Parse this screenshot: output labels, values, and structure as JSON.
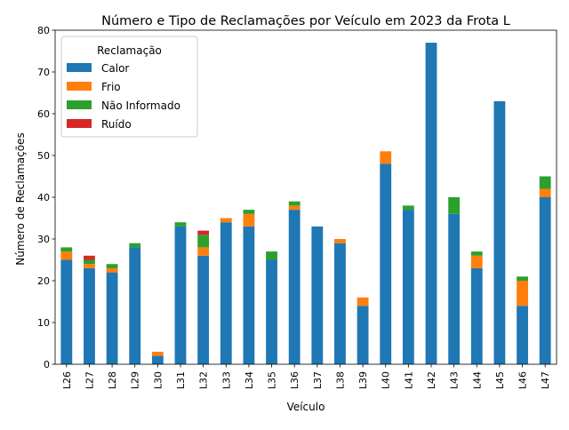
{
  "chart_data": {
    "type": "bar",
    "stacked": true,
    "title": "Número e Tipo de Reclamações por  Veículo em 2023 da Frota L",
    "xlabel": "Veículo",
    "ylabel": "Número de Reclamações",
    "ylim": [
      0,
      80
    ],
    "yticks": [
      0,
      10,
      20,
      30,
      40,
      50,
      60,
      70,
      80
    ],
    "categories": [
      "L26",
      "L27",
      "L28",
      "L29",
      "L30",
      "L31",
      "L32",
      "L33",
      "L34",
      "L35",
      "L36",
      "L37",
      "L38",
      "L39",
      "L40",
      "L41",
      "L42",
      "L43",
      "L44",
      "L45",
      "L46",
      "L47"
    ],
    "legend": {
      "title": "Reclamação",
      "position": "upper-left"
    },
    "series": [
      {
        "name": "Calor",
        "color": "#1f77b4",
        "values": [
          25,
          23,
          22,
          28,
          2,
          33,
          26,
          34,
          33,
          25,
          37,
          33,
          29,
          14,
          48,
          37,
          77,
          36,
          23,
          63,
          14,
          40
        ]
      },
      {
        "name": "Frio",
        "color": "#ff7f0e",
        "values": [
          2,
          1,
          1,
          0,
          1,
          0,
          2,
          1,
          3,
          0,
          1,
          0,
          1,
          2,
          3,
          0,
          0,
          0,
          3,
          0,
          6,
          2
        ]
      },
      {
        "name": "Não Informado",
        "color": "#2ca02c",
        "values": [
          1,
          1,
          1,
          1,
          0,
          1,
          3,
          0,
          1,
          2,
          1,
          0,
          0,
          0,
          0,
          1,
          0,
          4,
          1,
          0,
          1,
          3
        ]
      },
      {
        "name": "Ruído",
        "color": "#d62728",
        "values": [
          0,
          1,
          0,
          0,
          0,
          0,
          1,
          0,
          0,
          0,
          0,
          0,
          0,
          0,
          0,
          0,
          0,
          0,
          0,
          0,
          0,
          0
        ]
      }
    ]
  }
}
